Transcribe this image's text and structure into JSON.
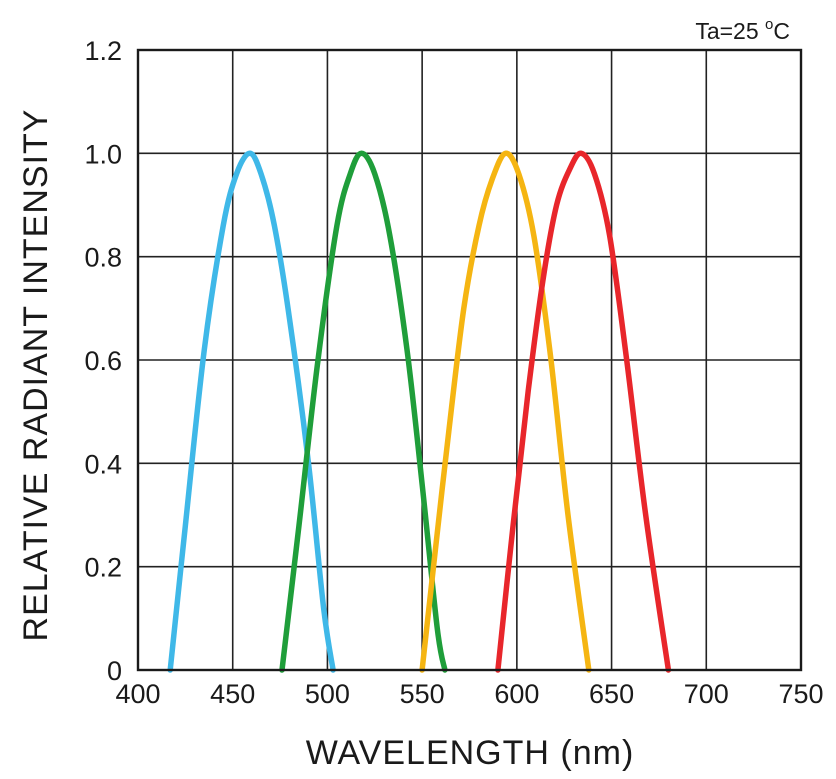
{
  "chart_data": {
    "type": "line",
    "title": "",
    "annotation": {
      "prefix": "Ta=25 ",
      "sup": "o",
      "unit": "C"
    },
    "xlabel": "WAVELENGTH (nm)",
    "ylabel": "RELATIVE RADIANT INTENSITY",
    "xlim": [
      400,
      750
    ],
    "ylim": [
      0,
      1.2
    ],
    "xticks": [
      "400",
      "450",
      "500",
      "550",
      "600",
      "650",
      "700",
      "750"
    ],
    "yticks": [
      "0",
      "0.2",
      "0.4",
      "0.6",
      "0.8",
      "1.0",
      "1.2"
    ],
    "grid": true,
    "legend": "none",
    "series": [
      {
        "color": "#3fb8e8",
        "x": [
          417,
          425,
          435,
          445,
          452,
          459,
          465,
          472,
          480,
          490,
          498,
          503
        ],
        "y": [
          0,
          0.28,
          0.62,
          0.86,
          0.96,
          1.0,
          0.96,
          0.86,
          0.68,
          0.4,
          0.12,
          0
        ]
      },
      {
        "color": "#1f9e3a",
        "x": [
          476,
          485,
          495,
          505,
          512,
          518,
          525,
          533,
          542,
          550,
          558,
          562
        ],
        "y": [
          0,
          0.28,
          0.6,
          0.86,
          0.96,
          1.0,
          0.96,
          0.84,
          0.62,
          0.36,
          0.08,
          0
        ]
      },
      {
        "color": "#f5b512",
        "x": [
          550,
          556,
          564,
          572,
          580,
          587,
          594,
          601,
          609,
          618,
          627,
          638
        ],
        "y": [
          0,
          0.2,
          0.46,
          0.7,
          0.86,
          0.95,
          1.0,
          0.96,
          0.84,
          0.6,
          0.3,
          0
        ]
      },
      {
        "color": "#e8262b",
        "x": [
          590,
          598,
          606,
          614,
          621,
          628,
          634,
          641,
          649,
          658,
          668,
          680
        ],
        "y": [
          0,
          0.28,
          0.54,
          0.76,
          0.9,
          0.97,
          1.0,
          0.96,
          0.84,
          0.6,
          0.3,
          0
        ]
      }
    ]
  }
}
